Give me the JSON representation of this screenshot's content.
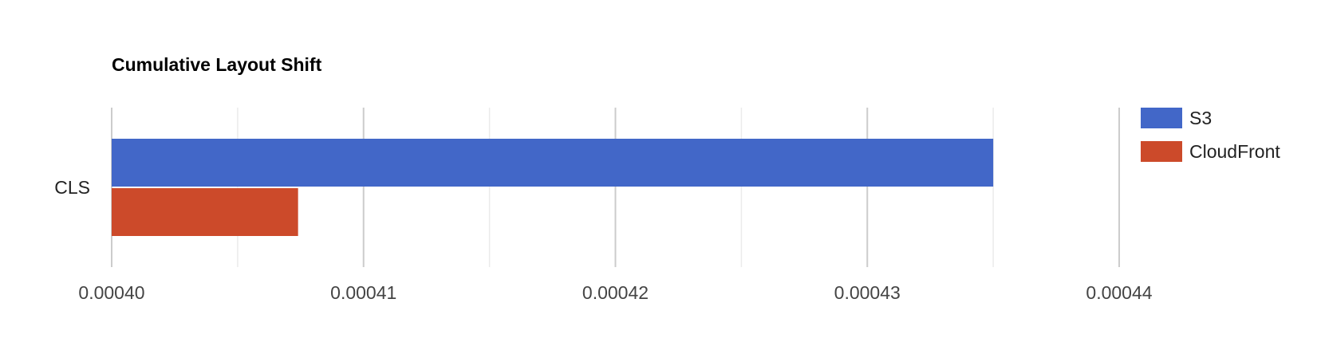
{
  "chart_data": {
    "type": "bar",
    "orientation": "horizontal",
    "title": "Cumulative Layout Shift",
    "categories": [
      "CLS"
    ],
    "series": [
      {
        "name": "S3",
        "values": [
          0.000435
        ],
        "color": "#4267c8"
      },
      {
        "name": "CloudFront",
        "values": [
          0.0004074
        ],
        "color": "#cc4a2a"
      }
    ],
    "xlim": [
      0.0004,
      0.00044
    ],
    "x_ticks": [
      "0.00040",
      "0.00041",
      "0.00042",
      "0.00043",
      "0.00044"
    ],
    "x_minor_gridlines": true,
    "grid": true,
    "legend_position": "right",
    "colors": {
      "major_grid": "#cccccc",
      "minor_grid": "#ebebeb",
      "axis_label": "#444444"
    }
  }
}
